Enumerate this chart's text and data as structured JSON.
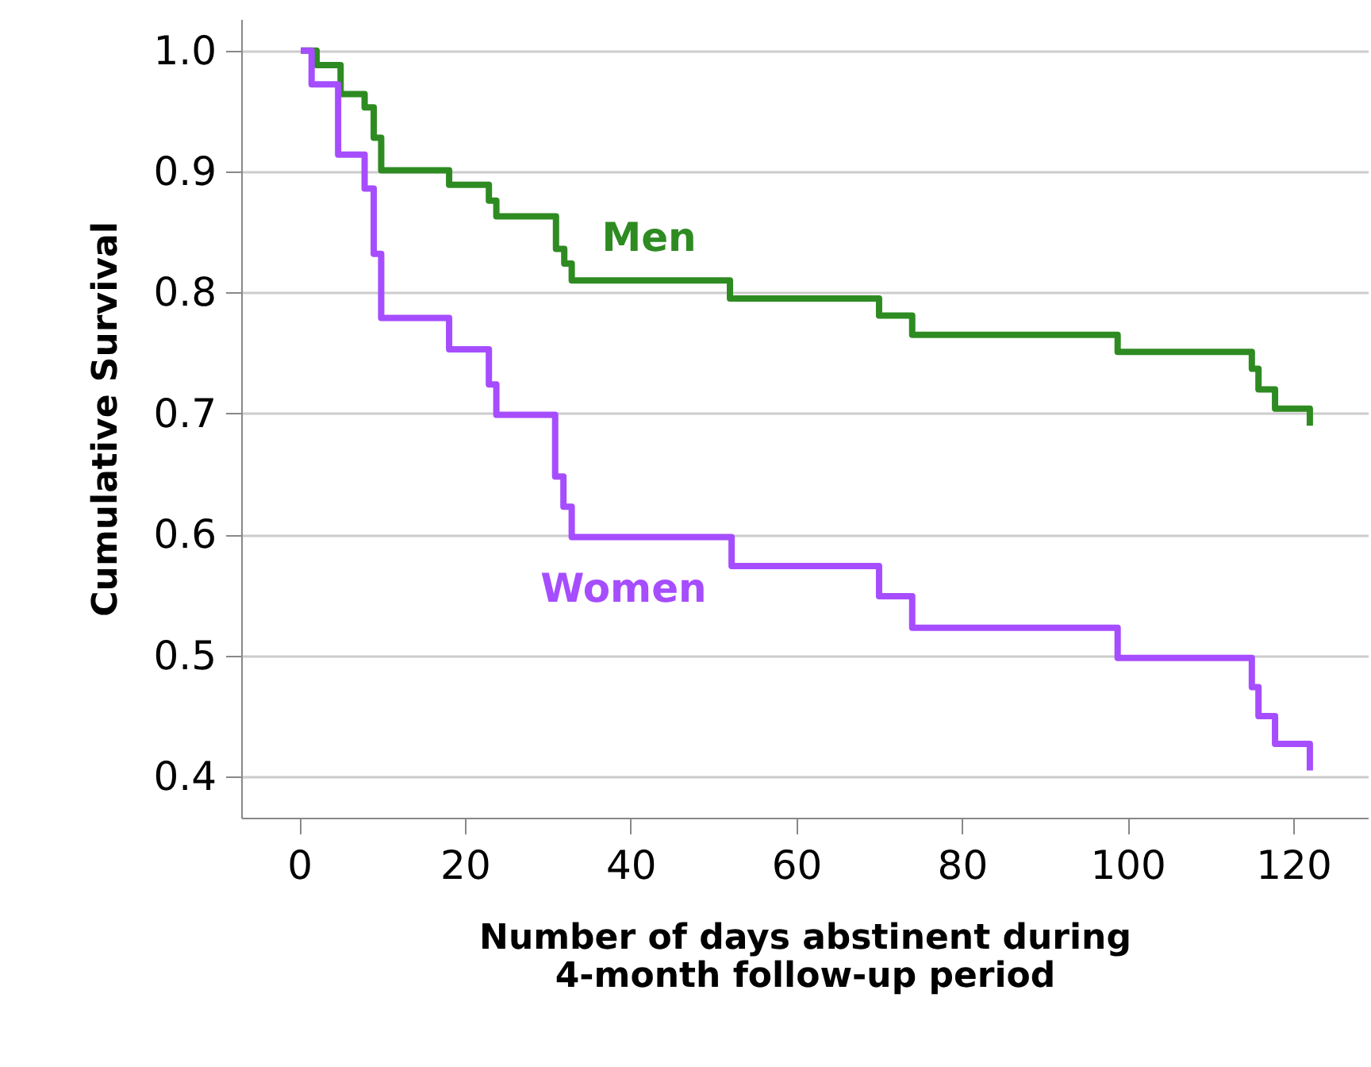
{
  "chart_data": {
    "type": "step",
    "xlabel": "Number of days abstinent during\n4-month follow-up period",
    "ylabel": "Cumulative Survival",
    "xlim": [
      -7,
      129
    ],
    "ylim": [
      0.366,
      1.026
    ],
    "xticks": [
      0,
      20,
      40,
      60,
      80,
      100,
      120
    ],
    "yticks": [
      0.4,
      0.5,
      0.6,
      0.7,
      0.8,
      0.9,
      {
        "value": 1,
        "label": "1.0"
      }
    ],
    "grid": "y",
    "marker": "none",
    "line_style": "solid",
    "series": [
      {
        "name": "Men",
        "color": "#2e8b22",
        "x": [
          0.2,
          2.1,
          5,
          7.9,
          9,
          9.9,
          18.1,
          22.9,
          23.8,
          31,
          32,
          32.9,
          52,
          70,
          74,
          98.8,
          115,
          115.8,
          117.8,
          122
        ],
        "values": [
          1.0,
          0.988,
          0.964,
          0.953,
          0.928,
          0.901,
          0.889,
          0.876,
          0.863,
          0.836,
          0.824,
          0.81,
          0.795,
          0.781,
          0.765,
          0.751,
          0.737,
          0.72,
          0.704,
          0.69
        ]
      },
      {
        "name": "Women",
        "color": "#a64dff",
        "x": [
          0.2,
          1.5,
          4.7,
          7.9,
          9,
          9.9,
          18.1,
          22.9,
          23.8,
          30.9,
          31.9,
          32.9,
          52.2,
          70,
          74,
          98.8,
          115,
          115.8,
          117.8,
          122
        ],
        "values": [
          1.0,
          0.972,
          0.914,
          0.886,
          0.832,
          0.779,
          0.753,
          0.724,
          0.699,
          0.648,
          0.623,
          0.598,
          0.574,
          0.549,
          0.523,
          0.498,
          0.474,
          0.45,
          0.427,
          0.405
        ]
      }
    ]
  }
}
